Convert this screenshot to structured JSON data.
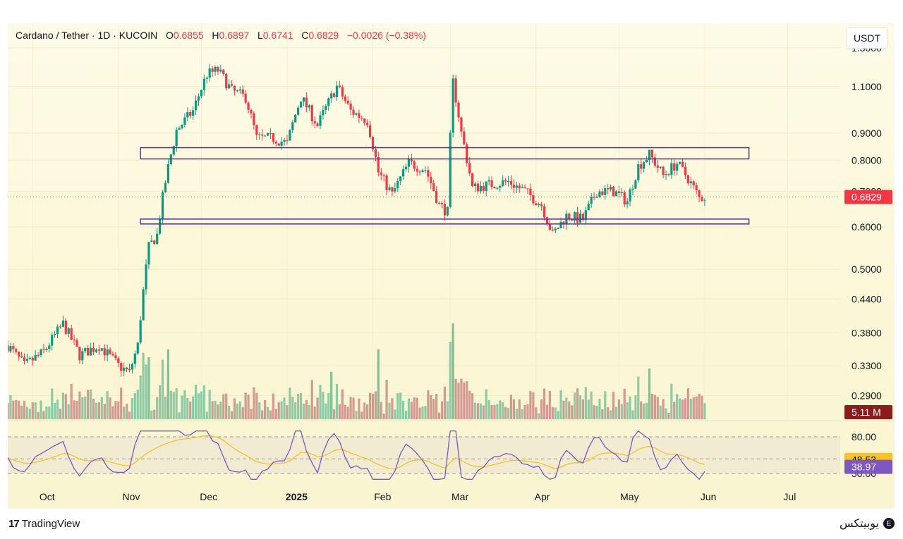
{
  "legend": {
    "symbol": "Cardano / Tether · 1D · KUCOIN",
    "o_label": "O",
    "o_value": "0.6855",
    "h_label": "H",
    "h_value": "0.6897",
    "l_label": "L",
    "l_value": "0.6741",
    "c_label": "C",
    "c_value": "0.6829",
    "change": "−0.0026 (−0.38%)"
  },
  "unit_button": "USDT",
  "price_axis": {
    "ticks": [
      "1.3000",
      "1.1000",
      "0.9000",
      "0.8000",
      "0.7000",
      "0.6000",
      "0.5000",
      "0.4400",
      "0.3800",
      "0.3300",
      "0.2900"
    ],
    "last_price_label": "0.6829",
    "volume_label": "5.11 M"
  },
  "rsi_axis": {
    "ticks": [
      "80.00",
      "30.00"
    ],
    "ma_label": "48.53",
    "rsi_label": "38.97"
  },
  "time_axis": [
    "Oct",
    "Nov",
    "Dec",
    "2025",
    "Feb",
    "Mar",
    "Apr",
    "May",
    "Jun",
    "Jul"
  ],
  "footer": {
    "brand": "TradingView",
    "watermark": "یوبیتکس"
  },
  "colors": {
    "up": "#089981",
    "down": "#f23645",
    "zone": "#5b2ea6",
    "rsi": "#7e57c2",
    "rsi_ma": "#f7c325",
    "last_price": "#f23645",
    "volume_badge": "#8b1c1c"
  },
  "chart_data": {
    "type": "candlestick",
    "title": "Cardano / Tether · 1D · KUCOIN",
    "y_scale": "log",
    "ylim": [
      0.28,
      1.36
    ],
    "x_range": [
      "2024-09-22",
      "2025-07-20"
    ],
    "last_close": 0.6829,
    "resistance_zone": [
      0.805,
      0.845
    ],
    "support_zone": [
      0.608,
      0.621
    ],
    "zones_x": [
      "2024-11-09",
      "2025-06-17"
    ],
    "close_series": [
      {
        "date": "2024-09-22",
        "close": 0.36
      },
      {
        "date": "2024-09-28",
        "close": 0.33
      },
      {
        "date": "2024-10-05",
        "close": 0.35
      },
      {
        "date": "2024-10-12",
        "close": 0.395
      },
      {
        "date": "2024-10-18",
        "close": 0.345
      },
      {
        "date": "2024-10-25",
        "close": 0.36
      },
      {
        "date": "2024-11-01",
        "close": 0.33
      },
      {
        "date": "2024-11-05",
        "close": 0.32
      },
      {
        "date": "2024-11-08",
        "close": 0.36
      },
      {
        "date": "2024-11-12",
        "close": 0.55
      },
      {
        "date": "2024-11-15",
        "close": 0.58
      },
      {
        "date": "2024-11-18",
        "close": 0.73
      },
      {
        "date": "2024-11-22",
        "close": 0.91
      },
      {
        "date": "2024-11-28",
        "close": 0.99
      },
      {
        "date": "2024-12-03",
        "close": 1.16
      },
      {
        "date": "2024-12-07",
        "close": 1.18
      },
      {
        "date": "2024-12-12",
        "close": 1.08
      },
      {
        "date": "2024-12-17",
        "close": 1.05
      },
      {
        "date": "2024-12-21",
        "close": 0.88
      },
      {
        "date": "2024-12-27",
        "close": 0.88
      },
      {
        "date": "2025-01-01",
        "close": 0.86
      },
      {
        "date": "2025-01-06",
        "close": 1.05
      },
      {
        "date": "2025-01-12",
        "close": 0.93
      },
      {
        "date": "2025-01-19",
        "close": 1.1
      },
      {
        "date": "2025-01-24",
        "close": 0.99
      },
      {
        "date": "2025-01-30",
        "close": 0.95
      },
      {
        "date": "2025-02-03",
        "close": 0.76
      },
      {
        "date": "2025-02-08",
        "close": 0.69
      },
      {
        "date": "2025-02-14",
        "close": 0.79
      },
      {
        "date": "2025-02-20",
        "close": 0.77
      },
      {
        "date": "2025-02-25",
        "close": 0.66
      },
      {
        "date": "2025-02-28",
        "close": 0.64
      },
      {
        "date": "2025-03-02",
        "close": 1.12
      },
      {
        "date": "2025-03-05",
        "close": 0.9
      },
      {
        "date": "2025-03-09",
        "close": 0.71
      },
      {
        "date": "2025-03-15",
        "close": 0.72
      },
      {
        "date": "2025-03-22",
        "close": 0.73
      },
      {
        "date": "2025-03-28",
        "close": 0.7
      },
      {
        "date": "2025-04-03",
        "close": 0.66
      },
      {
        "date": "2025-04-07",
        "close": 0.58
      },
      {
        "date": "2025-04-12",
        "close": 0.63
      },
      {
        "date": "2025-04-18",
        "close": 0.62
      },
      {
        "date": "2025-04-23",
        "close": 0.7
      },
      {
        "date": "2025-04-29",
        "close": 0.7
      },
      {
        "date": "2025-05-04",
        "close": 0.67
      },
      {
        "date": "2025-05-08",
        "close": 0.78
      },
      {
        "date": "2025-05-12",
        "close": 0.82
      },
      {
        "date": "2025-05-17",
        "close": 0.75
      },
      {
        "date": "2025-05-22",
        "close": 0.79
      },
      {
        "date": "2025-05-26",
        "close": 0.74
      },
      {
        "date": "2025-05-30",
        "close": 0.68
      },
      {
        "date": "2025-06-01",
        "close": 0.6829
      }
    ],
    "volume_series": [
      {
        "date": "2024-11-12",
        "volume": 0.55
      },
      {
        "date": "2024-11-19",
        "volume": 0.62
      },
      {
        "date": "2025-01-17",
        "volume": 0.42
      },
      {
        "date": "2025-02-03",
        "volume": 0.62
      },
      {
        "date": "2025-03-02",
        "volume": 0.85
      },
      {
        "date": "2025-05-12",
        "volume": 0.45
      },
      {
        "date": "2025-06-01",
        "volume": 5.11
      }
    ],
    "rsi": {
      "levels": [
        80,
        50,
        30
      ],
      "last_rsi": 38.97,
      "last_ma": 48.53
    }
  }
}
